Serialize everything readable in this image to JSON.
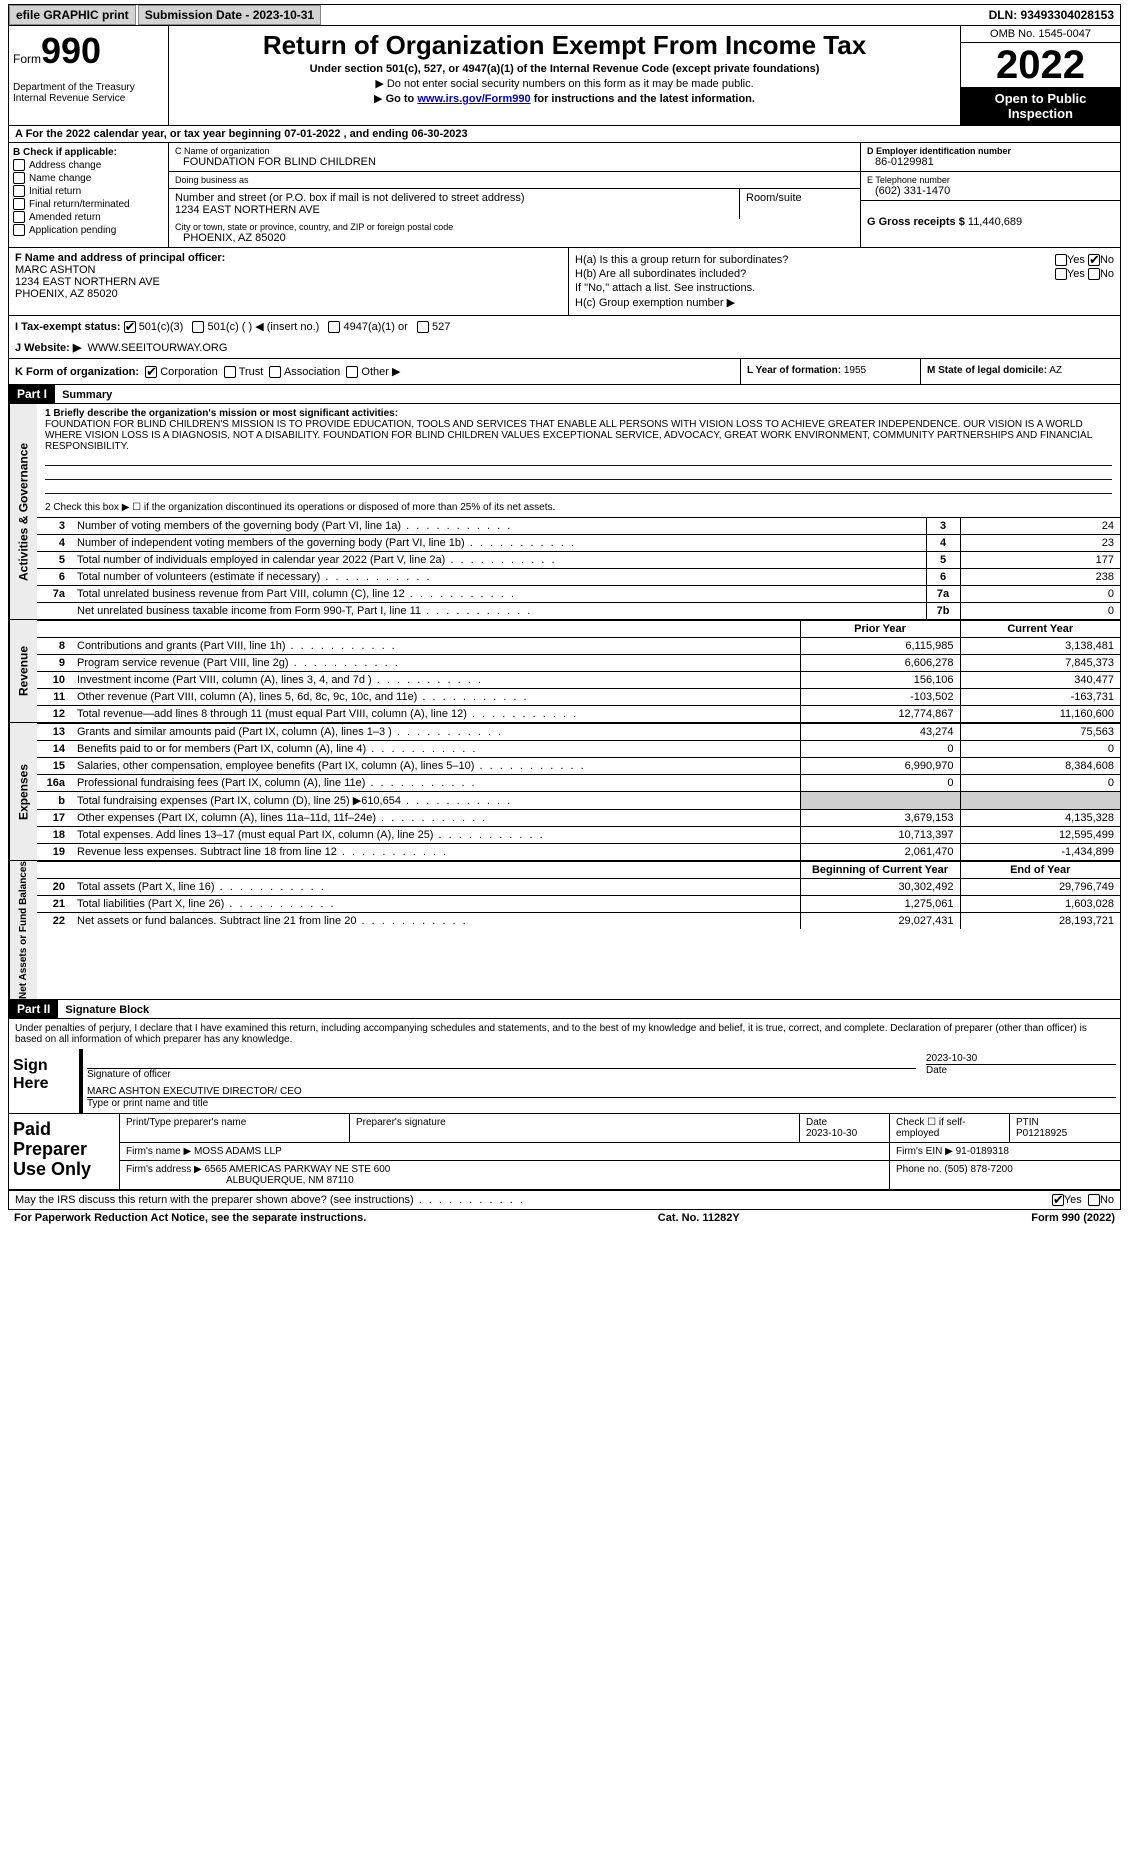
{
  "topbar": {
    "efile": "efile GRAPHIC print",
    "submission": "Submission Date - 2023-10-31",
    "dln": "DLN: 93493304028153"
  },
  "header": {
    "form_label": "Form",
    "form_number": "990",
    "dept": "Department of the Treasury Internal Revenue Service",
    "title": "Return of Organization Exempt From Income Tax",
    "sub1": "Under section 501(c), 527, or 4947(a)(1) of the Internal Revenue Code (except private foundations)",
    "sub2": "Do not enter social security numbers on this form as it may be made public.",
    "sub3_pre": "Go to ",
    "sub3_link": "www.irs.gov/Form990",
    "sub3_post": " for instructions and the latest information.",
    "omb": "OMB No. 1545-0047",
    "year": "2022",
    "open": "Open to Public Inspection"
  },
  "row_a": "A For the 2022 calendar year, or tax year beginning 07-01-2022    , and ending 06-30-2023",
  "section_b": {
    "title": "B Check if applicable:",
    "items": [
      "Address change",
      "Name change",
      "Initial return",
      "Final return/terminated",
      "Amended return",
      "Application pending"
    ]
  },
  "section_c": {
    "name_lab": "C Name of organization",
    "name": "FOUNDATION FOR BLIND CHILDREN",
    "dba_lab": "Doing business as",
    "dba": "",
    "street_lab": "Number and street (or P.O. box if mail is not delivered to street address)",
    "room_lab": "Room/suite",
    "street": "1234 EAST NORTHERN AVE",
    "city_lab": "City or town, state or province, country, and ZIP or foreign postal code",
    "city": "PHOENIX, AZ  85020"
  },
  "section_d": {
    "ein_lab": "D Employer identification number",
    "ein": "86-0129981",
    "tel_lab": "E Telephone number",
    "tel": "(602) 331-1470",
    "gross_lab": "G Gross receipts $",
    "gross": "11,440,689"
  },
  "section_f": {
    "lab": "F Name and address of principal officer:",
    "name": "MARC ASHTON",
    "addr1": "1234 EAST NORTHERN AVE",
    "addr2": "PHOENIX, AZ  85020"
  },
  "section_h": {
    "ha": "H(a)  Is this a group return for subordinates?",
    "hb": "H(b)  Are all subordinates included?",
    "hb_note": "If \"No,\" attach a list. See instructions.",
    "hc": "H(c)  Group exemption number ▶"
  },
  "row_i": {
    "lab": "I   Tax-exempt status:",
    "opts": [
      "501(c)(3)",
      "501(c) (  ) ◀ (insert no.)",
      "4947(a)(1) or",
      "527"
    ]
  },
  "row_j": {
    "lab": "J   Website: ▶",
    "val": "WWW.SEEITOURWAY.ORG"
  },
  "row_k": {
    "lab": "K Form of organization:",
    "opts": [
      "Corporation",
      "Trust",
      "Association",
      "Other ▶"
    ]
  },
  "row_l": {
    "lab": "L Year of formation:",
    "val": "1955"
  },
  "row_m": {
    "lab": "M State of legal domicile:",
    "val": "AZ"
  },
  "part1": {
    "hdr": "Part I",
    "title": "Summary",
    "side1": "Activities & Governance",
    "side2": "Revenue",
    "side3": "Expenses",
    "side4": "Net Assets or Fund Balances",
    "line1_lab": "1  Briefly describe the organization's mission or most significant activities:",
    "mission": "FOUNDATION FOR BLIND CHILDREN'S MISSION IS TO PROVIDE EDUCATION, TOOLS AND SERVICES THAT ENABLE ALL PERSONS WITH VISION LOSS TO ACHIEVE GREATER INDEPENDENCE. OUR VISION IS A WORLD WHERE VISION LOSS IS A DIAGNOSIS, NOT A DISABILITY. FOUNDATION FOR BLIND CHILDREN VALUES EXCEPTIONAL SERVICE, ADVOCACY, GREAT WORK ENVIRONMENT, COMMUNITY PARTNERSHIPS AND FINANCIAL RESPONSIBILITY.",
    "line2": "2    Check this box ▶ ☐  if the organization discontinued its operations or disposed of more than 25% of its net assets.",
    "gov_rows": [
      {
        "n": "3",
        "t": "Number of voting members of the governing body (Part VI, line 1a)",
        "c": "3",
        "v": "24"
      },
      {
        "n": "4",
        "t": "Number of independent voting members of the governing body (Part VI, line 1b)",
        "c": "4",
        "v": "23"
      },
      {
        "n": "5",
        "t": "Total number of individuals employed in calendar year 2022 (Part V, line 2a)",
        "c": "5",
        "v": "177"
      },
      {
        "n": "6",
        "t": "Total number of volunteers (estimate if necessary)",
        "c": "6",
        "v": "238"
      },
      {
        "n": "7a",
        "t": "Total unrelated business revenue from Part VIII, column (C), line 12",
        "c": "7a",
        "v": "0"
      },
      {
        "n": "",
        "t": "Net unrelated business taxable income from Form 990-T, Part I, line 11",
        "c": "7b",
        "v": "0"
      }
    ],
    "col_prior": "Prior Year",
    "col_current": "Current Year",
    "rev_rows": [
      {
        "n": "8",
        "t": "Contributions and grants (Part VIII, line 1h)",
        "p": "6,115,985",
        "c": "3,138,481"
      },
      {
        "n": "9",
        "t": "Program service revenue (Part VIII, line 2g)",
        "p": "6,606,278",
        "c": "7,845,373"
      },
      {
        "n": "10",
        "t": "Investment income (Part VIII, column (A), lines 3, 4, and 7d )",
        "p": "156,106",
        "c": "340,477"
      },
      {
        "n": "11",
        "t": "Other revenue (Part VIII, column (A), lines 5, 6d, 8c, 9c, 10c, and 11e)",
        "p": "-103,502",
        "c": "-163,731"
      },
      {
        "n": "12",
        "t": "Total revenue—add lines 8 through 11 (must equal Part VIII, column (A), line 12)",
        "p": "12,774,867",
        "c": "11,160,600"
      }
    ],
    "exp_rows": [
      {
        "n": "13",
        "t": "Grants and similar amounts paid (Part IX, column (A), lines 1–3 )",
        "p": "43,274",
        "c": "75,563"
      },
      {
        "n": "14",
        "t": "Benefits paid to or for members (Part IX, column (A), line 4)",
        "p": "0",
        "c": "0"
      },
      {
        "n": "15",
        "t": "Salaries, other compensation, employee benefits (Part IX, column (A), lines 5–10)",
        "p": "6,990,970",
        "c": "8,384,608"
      },
      {
        "n": "16a",
        "t": "Professional fundraising fees (Part IX, column (A), line 11e)",
        "p": "0",
        "c": "0"
      },
      {
        "n": "b",
        "t": "Total fundraising expenses (Part IX, column (D), line 25) ▶610,654",
        "p": "__GREY__",
        "c": "__GREY__"
      },
      {
        "n": "17",
        "t": "Other expenses (Part IX, column (A), lines 11a–11d, 11f–24e)",
        "p": "3,679,153",
        "c": "4,135,328"
      },
      {
        "n": "18",
        "t": "Total expenses. Add lines 13–17 (must equal Part IX, column (A), line 25)",
        "p": "10,713,397",
        "c": "12,595,499"
      },
      {
        "n": "19",
        "t": "Revenue less expenses. Subtract line 18 from line 12",
        "p": "2,061,470",
        "c": "-1,434,899"
      }
    ],
    "col_begin": "Beginning of Current Year",
    "col_end": "End of Year",
    "net_rows": [
      {
        "n": "20",
        "t": "Total assets (Part X, line 16)",
        "p": "30,302,492",
        "c": "29,796,749"
      },
      {
        "n": "21",
        "t": "Total liabilities (Part X, line 26)",
        "p": "1,275,061",
        "c": "1,603,028"
      },
      {
        "n": "22",
        "t": "Net assets or fund balances. Subtract line 21 from line 20",
        "p": "29,027,431",
        "c": "28,193,721"
      }
    ]
  },
  "part2": {
    "hdr": "Part II",
    "title": "Signature Block",
    "decl": "Under penalties of perjury, I declare that I have examined this return, including accompanying schedules and statements, and to the best of my knowledge and belief, it is true, correct, and complete. Declaration of preparer (other than officer) is based on all information of which preparer has any knowledge.",
    "sign_here": "Sign Here",
    "sig_officer": "Signature of officer",
    "sig_date": "2023-10-30",
    "date_lab": "Date",
    "officer_name": "MARC ASHTON  EXECUTIVE DIRECTOR/ CEO",
    "officer_lab": "Type or print name and title",
    "paid": "Paid Preparer Use Only",
    "prep_name_lab": "Print/Type preparer's name",
    "prep_sig_lab": "Preparer's signature",
    "prep_date_lab": "Date",
    "prep_date": "2023-10-30",
    "self_emp": "Check ☐ if self-employed",
    "ptin_lab": "PTIN",
    "ptin": "P01218925",
    "firm_name_lab": "Firm's name    ▶",
    "firm_name": "MOSS ADAMS LLP",
    "firm_ein_lab": "Firm's EIN ▶",
    "firm_ein": "91-0189318",
    "firm_addr_lab": "Firm's address ▶",
    "firm_addr1": "6565 AMERICAS PARKWAY NE STE 600",
    "firm_addr2": "ALBUQUERQUE, NM  87110",
    "phone_lab": "Phone no.",
    "phone": "(505) 878-7200",
    "discuss": "May the IRS discuss this return with the preparer shown above? (see instructions)",
    "yes": "Yes",
    "no": "No"
  },
  "footer": {
    "pra": "For Paperwork Reduction Act Notice, see the separate instructions.",
    "cat": "Cat. No. 11282Y",
    "form": "Form 990 (2022)"
  }
}
